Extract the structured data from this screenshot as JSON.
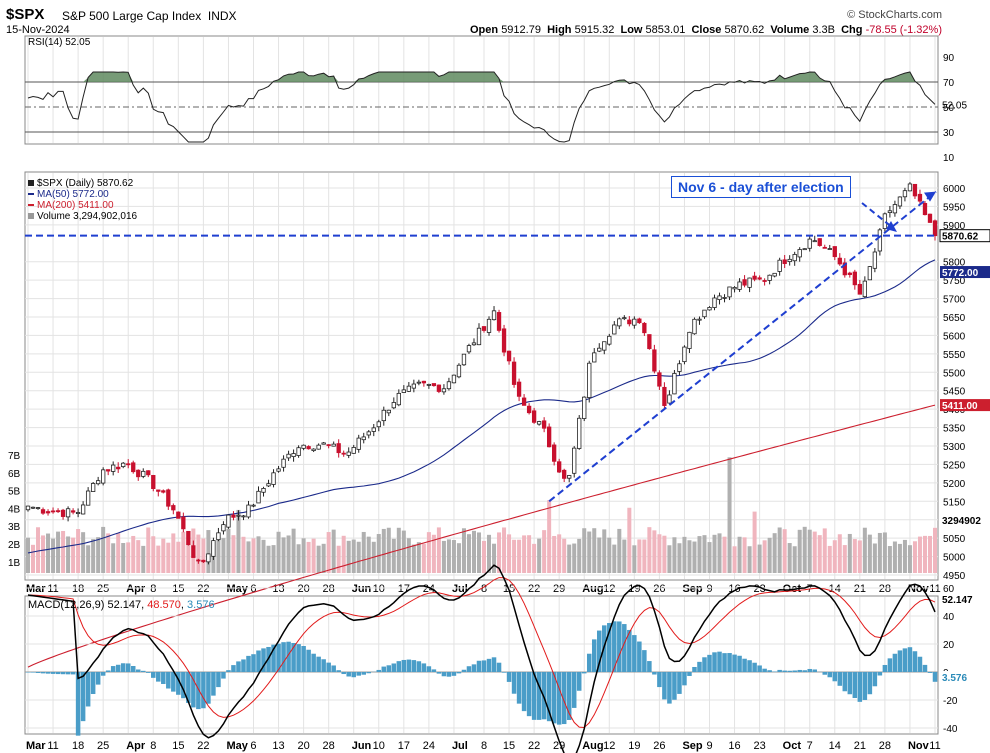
{
  "header": {
    "symbol": "$SPX",
    "name": "S&P 500 Large Cap Index",
    "exchange": "INDX",
    "date": "15-Nov-2024",
    "source": "© StockCharts.com",
    "open_label": "Open",
    "open": "5912.79",
    "high_label": "High",
    "high": "5915.32",
    "low_label": "Low",
    "low": "5853.01",
    "close_label": "Close",
    "close": "5870.62",
    "volume_label": "Volume",
    "volume": "3.3B",
    "chg_label": "Chg",
    "chg": "-78.55 (-1.32%)"
  },
  "rsi": {
    "label": "RSI(14) 52.05",
    "value_label": "52.05",
    "ticks": [
      "90",
      "70",
      "50",
      "30",
      "10"
    ]
  },
  "legend": {
    "price": "$SPX (Daily) 5870.62",
    "ma50": "MA(50) 5772.00",
    "ma200": "MA(200) 5411.00",
    "volume": "Volume 3,294,902,016"
  },
  "annotation": {
    "callout": "Nov 6 - day after election"
  },
  "price_axis": {
    "ticks": [
      "6000",
      "5950",
      "5900",
      "5800",
      "5750",
      "5700",
      "5650",
      "5600",
      "5550",
      "5500",
      "5450",
      "5400",
      "5350",
      "5300",
      "5250",
      "5200",
      "5150",
      "5100",
      "5050",
      "5000",
      "4950"
    ],
    "close_label": "5870.62",
    "ma50_label": "5772.00",
    "ma200_label": "5411.00",
    "volume_label": "3294902"
  },
  "volume_axis": {
    "ticks": [
      "7B",
      "6B",
      "5B",
      "4B",
      "3B",
      "2B",
      "1B"
    ]
  },
  "macd": {
    "label": "MACD(12,26,9)",
    "macd": "52.147",
    "signal": "48.570",
    "hist": "3.576",
    "ticks": [
      "60",
      "40",
      "20",
      "0",
      "-20",
      "-40",
      "-60"
    ],
    "macd_label": "52.147",
    "hist_label": "3.576"
  },
  "x_axis": {
    "labels": [
      {
        "t": "Mar",
        "major": true
      },
      {
        "t": "11",
        "major": false
      },
      {
        "t": "18",
        "major": false
      },
      {
        "t": "25",
        "major": false
      },
      {
        "t": "Apr",
        "major": true
      },
      {
        "t": "8",
        "major": false
      },
      {
        "t": "15",
        "major": false
      },
      {
        "t": "22",
        "major": false
      },
      {
        "t": "May",
        "major": true
      },
      {
        "t": "6",
        "major": false
      },
      {
        "t": "13",
        "major": false
      },
      {
        "t": "20",
        "major": false
      },
      {
        "t": "28",
        "major": false
      },
      {
        "t": "Jun",
        "major": true
      },
      {
        "t": "10",
        "major": false
      },
      {
        "t": "17",
        "major": false
      },
      {
        "t": "24",
        "major": false
      },
      {
        "t": "Jul",
        "major": true
      },
      {
        "t": "8",
        "major": false
      },
      {
        "t": "15",
        "major": false
      },
      {
        "t": "22",
        "major": false
      },
      {
        "t": "29",
        "major": false
      },
      {
        "t": "Aug",
        "major": true
      },
      {
        "t": "12",
        "major": false
      },
      {
        "t": "19",
        "major": false
      },
      {
        "t": "26",
        "major": false
      },
      {
        "t": "Sep",
        "major": true
      },
      {
        "t": "9",
        "major": false
      },
      {
        "t": "16",
        "major": false
      },
      {
        "t": "23",
        "major": false
      },
      {
        "t": "Oct",
        "major": true
      },
      {
        "t": "7",
        "major": false
      },
      {
        "t": "14",
        "major": false
      },
      {
        "t": "21",
        "major": false
      },
      {
        "t": "28",
        "major": false
      },
      {
        "t": "Nov",
        "major": true
      },
      {
        "t": "11",
        "major": false
      }
    ]
  },
  "chart_data": {
    "type": "candlestick",
    "title": "$SPX S&P 500 Large Cap Index INDX",
    "date_range": [
      "Mar 2024",
      "15-Nov-2024"
    ],
    "price_ylim": [
      4950,
      6000
    ],
    "price_waypoints": [
      {
        "date": "Mar 1",
        "close": 5137
      },
      {
        "date": "Mar 8",
        "close": 5123
      },
      {
        "date": "Mar 15",
        "close": 5117
      },
      {
        "date": "Mar 22",
        "close": 5234
      },
      {
        "date": "Mar 28",
        "close": 5254
      },
      {
        "date": "Apr 5",
        "close": 5204
      },
      {
        "date": "Apr 12",
        "close": 5123
      },
      {
        "date": "Apr 19",
        "close": 4967
      },
      {
        "date": "Apr 26",
        "close": 5100
      },
      {
        "date": "May 3",
        "close": 5128
      },
      {
        "date": "May 10",
        "close": 5223
      },
      {
        "date": "May 17",
        "close": 5303
      },
      {
        "date": "May 24",
        "close": 5305
      },
      {
        "date": "May 31",
        "close": 5278
      },
      {
        "date": "Jun 7",
        "close": 5347
      },
      {
        "date": "Jun 14",
        "close": 5431
      },
      {
        "date": "Jun 21",
        "close": 5465
      },
      {
        "date": "Jun 28",
        "close": 5460
      },
      {
        "date": "Jul 5",
        "close": 5567
      },
      {
        "date": "Jul 16",
        "close": 5667
      },
      {
        "date": "Jul 24",
        "close": 5427
      },
      {
        "date": "Aug 2",
        "close": 5346
      },
      {
        "date": "Aug 5",
        "close": 5186
      },
      {
        "date": "Aug 16",
        "close": 5554
      },
      {
        "date": "Aug 23",
        "close": 5634
      },
      {
        "date": "Aug 30",
        "close": 5648
      },
      {
        "date": "Sep 6",
        "close": 5408
      },
      {
        "date": "Sep 13",
        "close": 5626
      },
      {
        "date": "Sep 20",
        "close": 5702
      },
      {
        "date": "Sep 27",
        "close": 5738
      },
      {
        "date": "Oct 4",
        "close": 5751
      },
      {
        "date": "Oct 11",
        "close": 5815
      },
      {
        "date": "Oct 18",
        "close": 5864
      },
      {
        "date": "Oct 25",
        "close": 5808
      },
      {
        "date": "Oct 31",
        "close": 5705
      },
      {
        "date": "Nov 6",
        "close": 5929
      },
      {
        "date": "Nov 11",
        "close": 6001
      },
      {
        "date": "Nov 15",
        "close": 5870.62
      }
    ],
    "ma50_last": 5772.0,
    "ma200_last": 5411.0,
    "volume_last": 3294902016,
    "rsi_last": 52.05,
    "macd_last": {
      "macd": 52.147,
      "signal": 48.57,
      "hist": 3.576
    },
    "horizontal_line": 5870.62,
    "trendline": {
      "from": {
        "date": "Aug 5",
        "value": 5150
      },
      "to": {
        "date": "Nov 15",
        "value": 5990
      }
    },
    "annotations": [
      "Nov 6 - day after election"
    ]
  },
  "colors": {
    "up": "#222222",
    "down": "#c8102e",
    "ma50": "#1b2a8a",
    "ma200": "#cc1f2e",
    "dash": "#1f3fd0",
    "macd": "#000000",
    "signal": "#e21b1b",
    "hist": "#4a9dc8",
    "vol_up": "#b0b0b0",
    "vol_down": "#f0b5be",
    "rsi_fill": "#5f8a5f"
  }
}
